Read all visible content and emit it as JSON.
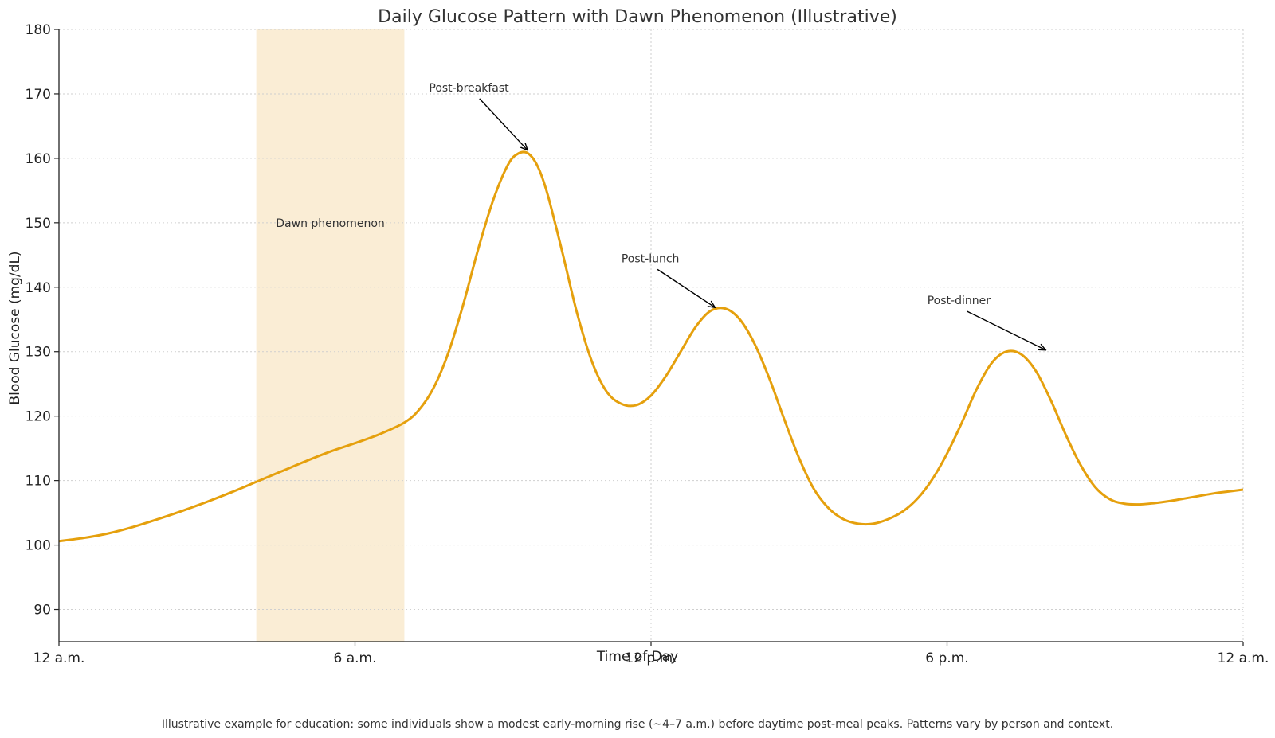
{
  "chart_data": {
    "type": "line",
    "title": "Daily Glucose Pattern with Dawn Phenomenon (Illustrative)",
    "xlabel": "Time of Day",
    "ylabel": "Blood Glucose (mg/dL)",
    "xlim": [
      0,
      24
    ],
    "ylim": [
      85,
      180
    ],
    "x_ticks": [
      {
        "value": 0,
        "label": "12 a.m."
      },
      {
        "value": 6,
        "label": "6 a.m."
      },
      {
        "value": 12,
        "label": "12 p.m."
      },
      {
        "value": 18,
        "label": "6 p.m."
      },
      {
        "value": 24,
        "label": "12 a.m."
      }
    ],
    "y_ticks": [
      90,
      100,
      110,
      120,
      130,
      140,
      150,
      160,
      170,
      180
    ],
    "grid": true,
    "series": [
      {
        "color": "#E5A00D",
        "x": [
          0,
          0.5,
          1,
          1.5,
          2,
          2.5,
          3,
          3.5,
          4,
          4.5,
          5,
          5.5,
          6,
          6.5,
          7,
          7.3,
          7.6,
          7.9,
          8.2,
          8.5,
          8.8,
          9.1,
          9.3,
          9.5,
          9.7,
          9.9,
          10.2,
          10.5,
          10.8,
          11.1,
          11.4,
          11.7,
          12,
          12.3,
          12.6,
          12.9,
          13.2,
          13.5,
          13.8,
          14.1,
          14.4,
          14.7,
          15,
          15.3,
          15.6,
          15.9,
          16.2,
          16.5,
          16.8,
          17.1,
          17.4,
          17.7,
          18,
          18.3,
          18.6,
          18.9,
          19.2,
          19.5,
          19.8,
          20.1,
          20.4,
          20.7,
          21,
          21.3,
          21.6,
          21.9,
          22.2,
          22.5,
          22.8,
          23.1,
          23.4,
          23.7,
          24
        ],
        "y": [
          100.6,
          101.1,
          101.8,
          102.8,
          104,
          105.3,
          106.7,
          108.2,
          109.8,
          111.4,
          113,
          114.5,
          115.8,
          117.2,
          119,
          121,
          124.5,
          130,
          137.5,
          146,
          153.5,
          159,
          160.7,
          160.8,
          158.8,
          154.5,
          145.5,
          136,
          128.5,
          123.8,
          121.9,
          121.7,
          123.2,
          126.2,
          130,
          133.8,
          136.3,
          136.7,
          135,
          131.2,
          125.8,
          119.5,
          113.5,
          108.7,
          105.7,
          104,
          103.3,
          103.3,
          104,
          105.2,
          107.2,
          110.2,
          114.2,
          119,
          124.2,
          128.2,
          130,
          129.6,
          127,
          122.5,
          117.2,
          112.5,
          109,
          107.1,
          106.4,
          106.3,
          106.5,
          106.8,
          107.2,
          107.6,
          108,
          108.3,
          108.6
        ]
      }
    ],
    "shaded_region": {
      "x_start": 4,
      "x_end": 7,
      "label": "Dawn phenomenon",
      "label_y": 150,
      "color": "#F5DFB3"
    },
    "annotations": [
      {
        "text": "Post-breakfast",
        "text_x": 7.5,
        "text_y": 171,
        "point_x": 9.5,
        "point_y": 161
      },
      {
        "text": "Post-lunch",
        "text_x": 11.4,
        "text_y": 144.5,
        "point_x": 13.3,
        "point_y": 136.6
      },
      {
        "text": "Post-dinner",
        "text_x": 17.6,
        "text_y": 138,
        "point_x": 20,
        "point_y": 130
      }
    ]
  },
  "footnote": "Illustrative example for education: some individuals show a modest early-morning rise (~4–7 a.m.) before daytime post-meal peaks. Patterns vary by person and context."
}
